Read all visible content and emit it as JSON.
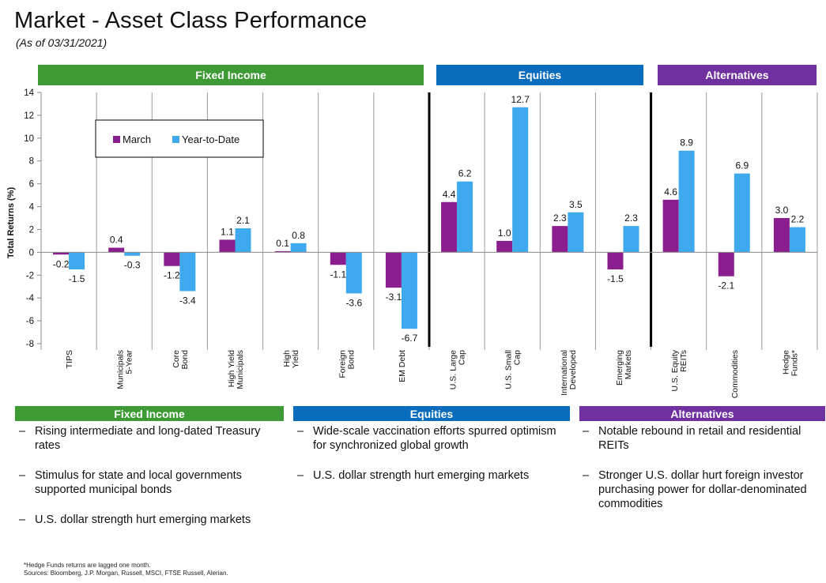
{
  "title": "Market - Asset Class Performance",
  "subtitle": "(As of 03/31/2021)",
  "colors": {
    "fixed_income": "#3d9a35",
    "equities": "#0a6cbd",
    "alternatives": "#7030a0",
    "march": "#8b1e8f",
    "ytd": "#3fa9ee"
  },
  "chart_data": {
    "type": "bar",
    "categories": [
      "TIPS",
      "Municipals 5-Year",
      "Core Bond",
      "High Yield Municipals",
      "High Yield",
      "Foreign Bond",
      "EM Debt",
      "U.S. Large Cap",
      "U.S. Small Cap",
      "International Developed",
      "Emerging Markets",
      "U.S. Equity REITs",
      "Commodities",
      "Hedge Funds*"
    ],
    "category_lines": [
      [
        "TIPS"
      ],
      [
        "Municipals",
        "5-Year"
      ],
      [
        "Core",
        "Bond"
      ],
      [
        "High Yield",
        "Municipals"
      ],
      [
        "High",
        "Yield"
      ],
      [
        "Foreign",
        "Bond"
      ],
      [
        "EM Debt"
      ],
      [
        "U.S. Large",
        "Cap"
      ],
      [
        "U.S. Small",
        "Cap"
      ],
      [
        "International",
        "Developed"
      ],
      [
        "Emerging",
        "Markets"
      ],
      [
        "U.S. Equity",
        "REITs"
      ],
      [
        "Commodities"
      ],
      [
        "Hedge",
        "Funds*"
      ]
    ],
    "series": [
      {
        "name": "March",
        "values": [
          -0.2,
          0.4,
          -1.2,
          1.1,
          0.1,
          -1.1,
          -3.1,
          4.4,
          1.0,
          2.3,
          -1.5,
          4.6,
          -2.1,
          3.0
        ]
      },
      {
        "name": "Year-to-Date",
        "values": [
          -1.5,
          -0.3,
          -3.4,
          2.1,
          0.8,
          -3.6,
          -6.7,
          6.2,
          12.7,
          3.5,
          2.3,
          8.9,
          6.9,
          2.2
        ]
      }
    ],
    "ylabel": "Total Returns (%)",
    "ylim": [
      -8,
      14
    ],
    "yticks": [
      -8,
      -6,
      -4,
      -2,
      0,
      2,
      4,
      6,
      8,
      10,
      12,
      14
    ],
    "groups": [
      {
        "label": "Fixed Income",
        "start": 0,
        "end": 6
      },
      {
        "label": "Equities",
        "start": 7,
        "end": 10
      },
      {
        "label": "Alternatives",
        "start": 11,
        "end": 13
      }
    ],
    "legend_position": "top-left"
  },
  "sections": [
    {
      "header": "Fixed Income",
      "bullets": [
        "Rising intermediate and long-dated Treasury rates",
        "Stimulus for state and local governments supported municipal bonds",
        "U.S. dollar strength hurt emerging markets"
      ]
    },
    {
      "header": "Equities",
      "bullets": [
        "Wide-scale vaccination efforts spurred optimism for synchronized global growth",
        "U.S. dollar strength hurt emerging markets"
      ]
    },
    {
      "header": "Alternatives",
      "bullets": [
        "Notable rebound in retail and residential REITs",
        "Stronger U.S. dollar hurt foreign investor purchasing power for dollar-denominated commodities"
      ]
    }
  ],
  "footnotes": [
    "*Hedge Funds returns are lagged one month.",
    "Sources: Bloomberg, J.P. Morgan, Russell, MSCI, FTSE Russell, Alerian."
  ]
}
